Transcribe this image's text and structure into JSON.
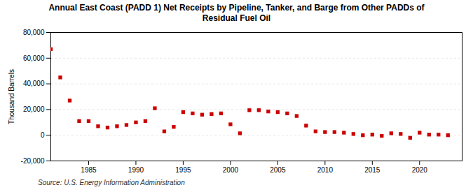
{
  "chart_data": {
    "type": "scatter",
    "title": "Annual East Coast (PADD 1) Net Receipts by Pipeline, Tanker, and Barge from Other PADDs of\nResidual Fuel Oil",
    "ylabel": "Thousand Barrels",
    "annotation": "Source: U.S. Energy Information Administration",
    "color": "#cc0000",
    "marker": "square",
    "grid": true,
    "x": [
      1981,
      1982,
      1983,
      1984,
      1985,
      1986,
      1987,
      1988,
      1989,
      1990,
      1991,
      1992,
      1993,
      1994,
      1995,
      1996,
      1997,
      1998,
      1999,
      2000,
      2001,
      2002,
      2003,
      2004,
      2005,
      2006,
      2007,
      2008,
      2009,
      2010,
      2011,
      2012,
      2013,
      2014,
      2015,
      2016,
      2017,
      2018,
      2019,
      2020,
      2021,
      2022,
      2023
    ],
    "values": [
      67000,
      45000,
      27000,
      11000,
      11000,
      7000,
      6000,
      7000,
      8000,
      10000,
      11000,
      21000,
      3000,
      6500,
      18000,
      17000,
      16000,
      16500,
      17000,
      8500,
      1500,
      19500,
      19500,
      18500,
      18000,
      17000,
      15000,
      7500,
      3000,
      2500,
      2500,
      2000,
      1000,
      0,
      500,
      -500,
      1500,
      1000,
      -2000,
      2000,
      500,
      500,
      0
    ],
    "xlim": [
      1981.0,
      2024.5
    ],
    "xticks": [
      1985,
      1990,
      1995,
      2000,
      2005,
      2010,
      2015,
      2020
    ],
    "ylim": [
      -20000,
      80000
    ],
    "yticks": [
      {
        "value": -20000,
        "label": "-20,000"
      },
      0,
      {
        "value": 20000,
        "label": "20,000"
      },
      {
        "value": 40000,
        "label": "40,000"
      },
      {
        "value": 60000,
        "label": "60,000"
      },
      {
        "value": 80000,
        "label": "80,000"
      }
    ]
  }
}
